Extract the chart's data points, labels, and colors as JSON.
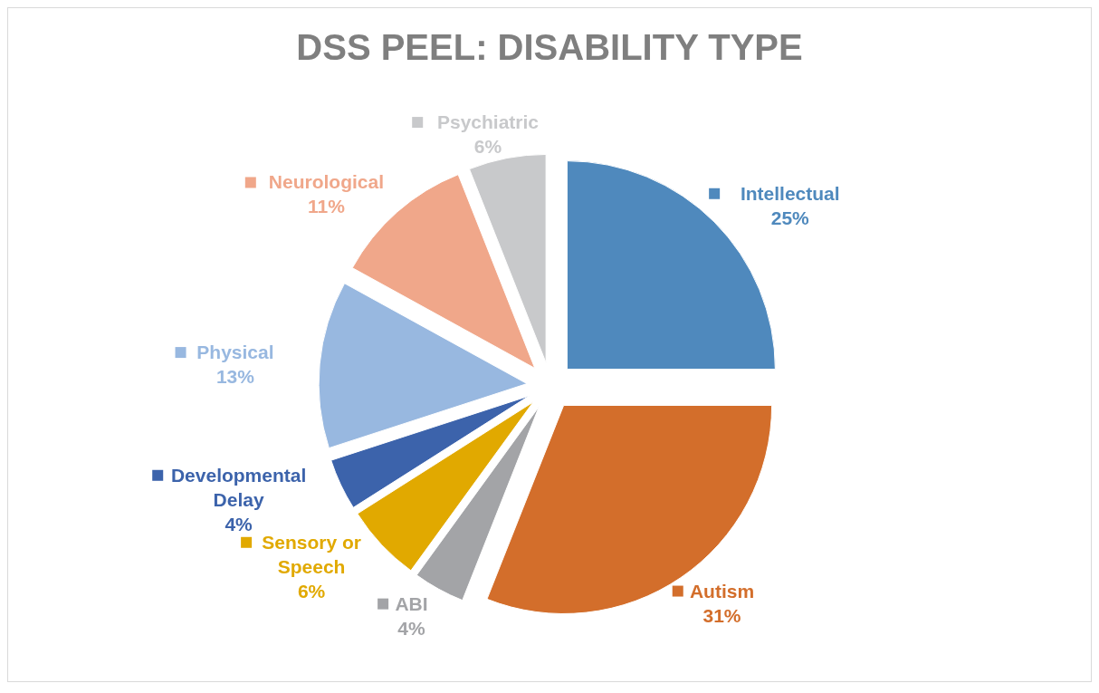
{
  "chart_data": {
    "type": "pie",
    "title": "DSS PEEL: DISABILITY TYPE",
    "categories": [
      "Intellectual",
      "Autism",
      "ABI",
      "Sensory or Speech",
      "Developmental Delay",
      "Physical",
      "Neurological",
      "Psychiatric"
    ],
    "values": [
      25,
      31,
      4,
      6,
      4,
      13,
      11,
      6
    ],
    "colors": [
      "#4f89bd",
      "#d36e2b",
      "#a3a4a7",
      "#e1a900",
      "#3c63ab",
      "#98b8e0",
      "#f0a78a",
      "#c8c9cb"
    ],
    "value_labels": [
      "25%",
      "31%",
      "4%",
      "6%",
      "4%",
      "13%",
      "11%",
      "6%"
    ],
    "legend": "top left"
  }
}
